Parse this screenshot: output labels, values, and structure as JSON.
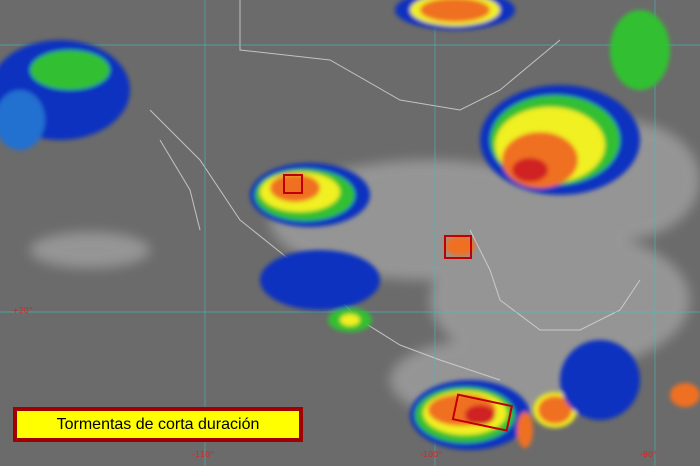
{
  "map": {
    "grid_labels": {
      "lat_20": "+20°",
      "lon_110": "-110°",
      "lon_100": "-100°",
      "lon_90": "-90°"
    },
    "legend_text": "Tormentas de corta duración",
    "colors": {
      "background": "#6a6a6a",
      "cloud_blue": "#1030c0",
      "cloud_green": "#30c030",
      "cloud_yellow": "#f0f020",
      "cloud_orange": "#f07020",
      "cloud_red": "#d02020",
      "highlight_box": "#c00000",
      "legend_fill": "#ffff00",
      "legend_border": "#a00000",
      "grid": "#40c0c0"
    }
  }
}
